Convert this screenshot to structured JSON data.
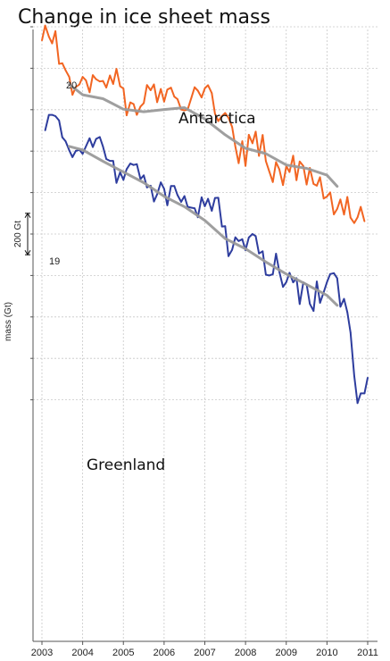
{
  "page": {
    "title": "Change in ice sheet mass"
  },
  "chart_data": {
    "type": "line",
    "title": "Change in ice sheet mass",
    "xlabel": "",
    "ylabel": "mass (Gt)",
    "xlim": [
      2003.0,
      2011.0
    ],
    "ylim": [
      -1920,
      80
    ],
    "x_ticks": [
      2003,
      2004,
      2005,
      2006,
      2007,
      2008,
      2009,
      2010,
      2011
    ],
    "y_tick_values": [
      0,
      -200,
      -400,
      -600,
      -800,
      -1000,
      -1200,
      -1400,
      -1600,
      -1800
    ],
    "grid": true,
    "scale_bar": {
      "label": "200 Gt",
      "value": 200
    },
    "series": [
      {
        "name": "Antarctica",
        "color": "#f26522",
        "x": [
          2003.0,
          2003.08,
          2003.17,
          2003.25,
          2003.33,
          2003.42,
          2003.5,
          2003.58,
          2003.67,
          2003.75,
          2003.83,
          2003.92,
          2004.0,
          2004.08,
          2004.17,
          2004.25,
          2004.33,
          2004.42,
          2004.5,
          2004.58,
          2004.67,
          2004.75,
          2004.83,
          2004.92,
          2005.0,
          2005.08,
          2005.17,
          2005.25,
          2005.33,
          2005.42,
          2005.5,
          2005.58,
          2005.67,
          2005.75,
          2005.83,
          2005.92,
          2006.0,
          2006.08,
          2006.17,
          2006.25,
          2006.33,
          2006.42,
          2006.5,
          2006.58,
          2006.67,
          2006.75,
          2006.83,
          2006.92,
          2007.0,
          2007.08,
          2007.17,
          2007.25,
          2007.33,
          2007.42,
          2007.5,
          2007.58,
          2007.67,
          2007.75,
          2007.83,
          2007.92,
          2008.0,
          2008.08,
          2008.17,
          2008.25,
          2008.33,
          2008.42,
          2008.5,
          2008.58,
          2008.67,
          2008.75,
          2008.83,
          2008.92,
          2009.0,
          2009.08,
          2009.17,
          2009.25,
          2009.33,
          2009.42,
          2009.5,
          2009.58,
          2009.67,
          2009.75,
          2009.83,
          2009.92,
          2010.0,
          2010.08,
          2010.17,
          2010.25,
          2010.33,
          2010.42,
          2010.5,
          2010.58,
          2010.67,
          2010.75,
          2010.83,
          2010.92
        ],
        "y": [
          -66,
          6,
          -48,
          -80,
          -21,
          -179,
          -176,
          -210,
          -242,
          -328,
          -291,
          -278,
          -242,
          -258,
          -316,
          -233,
          -253,
          -264,
          -261,
          -293,
          -235,
          -276,
          -203,
          -287,
          -298,
          -427,
          -365,
          -373,
          -425,
          -385,
          -368,
          -281,
          -306,
          -278,
          -364,
          -300,
          -361,
          -303,
          -294,
          -337,
          -349,
          -399,
          -403,
          -399,
          -343,
          -292,
          -308,
          -341,
          -297,
          -282,
          -320,
          -420,
          -455,
          -430,
          -416,
          -439,
          -483,
          -577,
          -658,
          -552,
          -671,
          -521,
          -562,
          -506,
          -623,
          -522,
          -648,
          -696,
          -749,
          -653,
          -688,
          -764,
          -672,
          -701,
          -622,
          -740,
          -650,
          -672,
          -761,
          -681,
          -758,
          -767,
          -726,
          -829,
          -819,
          -799,
          -905,
          -879,
          -833,
          -906,
          -821,
          -921,
          -947,
          -920,
          -869,
          -939
        ],
        "trend_x": [
          2003.67,
          2004.0,
          2004.5,
          2005.0,
          2005.5,
          2006.0,
          2006.5,
          2007.0,
          2007.5,
          2008.0,
          2008.5,
          2009.0,
          2009.5,
          2010.0,
          2010.25
        ],
        "trend_y": [
          -278,
          -328,
          -347,
          -398,
          -410,
          -399,
          -390,
          -445,
          -521,
          -586,
          -612,
          -667,
          -683,
          -716,
          -770
        ]
      },
      {
        "name": "Greenland",
        "color": "#2e3d9e",
        "x": [
          2003.08,
          2003.17,
          2003.25,
          2003.33,
          2003.42,
          2003.5,
          2003.58,
          2003.67,
          2003.75,
          2003.83,
          2003.92,
          2004.0,
          2004.08,
          2004.17,
          2004.25,
          2004.33,
          2004.42,
          2004.5,
          2004.58,
          2004.67,
          2004.75,
          2004.83,
          2004.92,
          2005.0,
          2005.08,
          2005.17,
          2005.25,
          2005.33,
          2005.42,
          2005.5,
          2005.58,
          2005.67,
          2005.75,
          2005.83,
          2005.92,
          2006.0,
          2006.08,
          2006.17,
          2006.25,
          2006.33,
          2006.42,
          2006.5,
          2006.58,
          2006.67,
          2006.75,
          2006.83,
          2006.92,
          2007.0,
          2007.08,
          2007.17,
          2007.25,
          2007.33,
          2007.42,
          2007.5,
          2007.58,
          2007.67,
          2007.75,
          2007.83,
          2007.92,
          2008.0,
          2008.08,
          2008.17,
          2008.25,
          2008.33,
          2008.42,
          2008.5,
          2008.58,
          2008.67,
          2008.75,
          2008.83,
          2008.92,
          2009.0,
          2009.08,
          2009.17,
          2009.25,
          2009.33,
          2009.42,
          2009.5,
          2009.58,
          2009.67,
          2009.75,
          2009.83,
          2009.92,
          2010.0,
          2010.08,
          2010.17,
          2010.25,
          2010.33,
          2010.42,
          2010.5,
          2010.58,
          2010.67,
          2010.75,
          2010.83,
          2010.92,
          2011.0
        ],
        "y": [
          -500,
          -425,
          -425,
          -431,
          -452,
          -533,
          -552,
          -596,
          -629,
          -599,
          -594,
          -613,
          -577,
          -538,
          -580,
          -541,
          -532,
          -578,
          -638,
          -647,
          -647,
          -753,
          -702,
          -739,
          -687,
          -660,
          -667,
          -663,
          -735,
          -717,
          -775,
          -767,
          -843,
          -808,
          -751,
          -782,
          -861,
          -768,
          -768,
          -812,
          -845,
          -817,
          -869,
          -873,
          -876,
          -919,
          -823,
          -866,
          -830,
          -888,
          -826,
          -825,
          -964,
          -962,
          -1107,
          -1076,
          -1016,
          -1034,
          -1025,
          -1078,
          -1017,
          -1000,
          -1010,
          -1094,
          -1083,
          -1196,
          -1200,
          -1194,
          -1095,
          -1182,
          -1255,
          -1232,
          -1187,
          -1233,
          -1213,
          -1338,
          -1233,
          -1243,
          -1337,
          -1371,
          -1229,
          -1332,
          -1281,
          -1232,
          -1193,
          -1189,
          -1213,
          -1351,
          -1313,
          -1377,
          -1476,
          -1683,
          -1816,
          -1769,
          -1769,
          -1693
        ],
        "trend_x": [
          2003.67,
          2004.0,
          2004.5,
          2005.0,
          2005.5,
          2006.0,
          2006.5,
          2007.0,
          2007.5,
          2008.0,
          2008.5,
          2009.0,
          2009.5,
          2010.0,
          2010.25
        ],
        "trend_y": [
          -577,
          -594,
          -649,
          -701,
          -752,
          -818,
          -868,
          -934,
          -1022,
          -1071,
          -1135,
          -1193,
          -1244,
          -1296,
          -1344
        ]
      }
    ],
    "annotations": [
      {
        "text": "20",
        "x": 2003.55,
        "y": -38
      },
      {
        "text": "19",
        "x": 2003.2,
        "y": -567
      }
    ]
  }
}
